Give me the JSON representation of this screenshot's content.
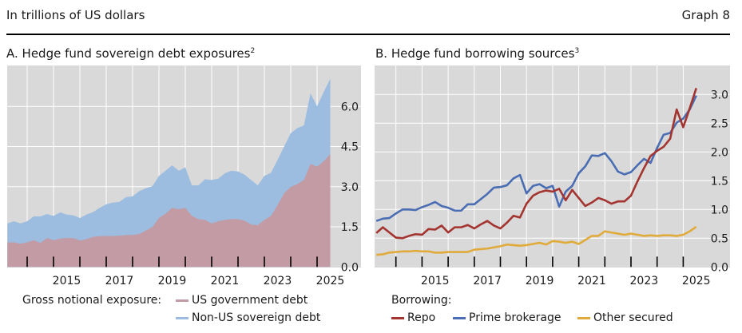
{
  "header": {
    "unit": "In trillions of US dollars",
    "graph_label": "Graph 8"
  },
  "colors": {
    "background": "#d9d9d9",
    "us_debt": "#c29ba5",
    "non_us_debt": "#9dbde0",
    "repo": "#a3342f",
    "prime_brokerage": "#4a6db3",
    "other_secured": "#e0ab3a"
  },
  "chart_data": [
    {
      "type": "area",
      "stacked": true,
      "title": "A. Hedge fund sovereign debt exposures",
      "title_note": "2",
      "xlabel": "",
      "ylabel": "",
      "x_ticks": [
        "2015",
        "2017",
        "2019",
        "2021",
        "2023",
        "2025"
      ],
      "y_ticks": [
        "0.0",
        "1.5",
        "3.0",
        "4.5",
        "6.0"
      ],
      "ylim": [
        0,
        7.5
      ],
      "xlim": [
        2013.25,
        2025.75
      ],
      "grid": true,
      "y_axis_side": "right",
      "legend_title": "Gross notional exposure:",
      "legend_placement": "bottom",
      "x": [
        2013.25,
        2013.5,
        2013.75,
        2014,
        2014.25,
        2014.5,
        2014.75,
        2015,
        2015.25,
        2015.5,
        2015.75,
        2016,
        2016.25,
        2016.5,
        2016.75,
        2017,
        2017.25,
        2017.5,
        2017.75,
        2018,
        2018.25,
        2018.5,
        2018.75,
        2019,
        2019.25,
        2019.5,
        2019.75,
        2020,
        2020.25,
        2020.5,
        2020.75,
        2021,
        2021.25,
        2021.5,
        2021.75,
        2022,
        2022.25,
        2022.5,
        2022.75,
        2023,
        2023.25,
        2023.5,
        2023.75,
        2024,
        2024.25,
        2024.5,
        2024.75,
        2025,
        2025.25,
        2025.5
      ],
      "series": [
        {
          "name": "US government debt",
          "values": [
            0.92,
            0.92,
            0.87,
            0.92,
            1.0,
            0.9,
            1.08,
            1.0,
            1.06,
            1.08,
            1.08,
            0.99,
            1.04,
            1.13,
            1.15,
            1.16,
            1.16,
            1.17,
            1.19,
            1.2,
            1.23,
            1.36,
            1.49,
            1.83,
            1.99,
            2.21,
            2.16,
            2.21,
            1.91,
            1.79,
            1.76,
            1.63,
            1.71,
            1.76,
            1.79,
            1.79,
            1.73,
            1.59,
            1.56,
            1.76,
            1.91,
            2.31,
            2.76,
            2.99,
            3.1,
            3.25,
            3.85,
            3.75,
            3.95,
            4.22
          ]
        },
        {
          "name": "Non-US sovereign debt",
          "values": [
            0.71,
            0.79,
            0.76,
            0.79,
            0.89,
            0.99,
            0.9,
            0.91,
            0.98,
            0.88,
            0.85,
            0.84,
            0.92,
            0.92,
            1.06,
            1.18,
            1.25,
            1.26,
            1.42,
            1.44,
            1.6,
            1.58,
            1.53,
            1.57,
            1.61,
            1.59,
            1.44,
            1.51,
            1.14,
            1.26,
            1.52,
            1.62,
            1.59,
            1.74,
            1.81,
            1.78,
            1.72,
            1.66,
            1.49,
            1.64,
            1.61,
            1.69,
            1.74,
            2.01,
            2.09,
            2.04,
            2.64,
            2.26,
            2.59,
            2.81
          ]
        }
      ]
    },
    {
      "type": "line",
      "title": "B. Hedge fund borrowing sources",
      "title_note": "3",
      "xlabel": "",
      "ylabel": "",
      "x_ticks": [
        "2015",
        "2017",
        "2019",
        "2021",
        "2023",
        "2025"
      ],
      "y_ticks": [
        "0.0",
        "0.5",
        "1.0",
        "1.5",
        "2.0",
        "2.5",
        "3.0"
      ],
      "ylim": [
        0,
        3.5
      ],
      "xlim": [
        2013.25,
        2025.75
      ],
      "grid": true,
      "y_axis_side": "right",
      "legend_title": "Borrowing:",
      "legend_placement": "bottom",
      "x": [
        2013.25,
        2013.5,
        2013.75,
        2014,
        2014.25,
        2014.5,
        2014.75,
        2015,
        2015.25,
        2015.5,
        2015.75,
        2016,
        2016.25,
        2016.5,
        2016.75,
        2017,
        2017.25,
        2017.5,
        2017.75,
        2018,
        2018.25,
        2018.5,
        2018.75,
        2019,
        2019.25,
        2019.5,
        2019.75,
        2020,
        2020.25,
        2020.5,
        2020.75,
        2021,
        2021.25,
        2021.5,
        2021.75,
        2022,
        2022.25,
        2022.5,
        2022.75,
        2023,
        2023.25,
        2023.5,
        2023.75,
        2024,
        2024.25,
        2024.5,
        2024.75,
        2025,
        2025.25,
        2025.5
      ],
      "series": [
        {
          "name": "Repo",
          "values": [
            0.59,
            0.69,
            0.6,
            0.51,
            0.5,
            0.54,
            0.57,
            0.56,
            0.66,
            0.65,
            0.72,
            0.6,
            0.69,
            0.69,
            0.73,
            0.67,
            0.74,
            0.8,
            0.72,
            0.67,
            0.77,
            0.89,
            0.86,
            1.1,
            1.24,
            1.3,
            1.33,
            1.31,
            1.36,
            1.16,
            1.34,
            1.2,
            1.06,
            1.12,
            1.2,
            1.16,
            1.1,
            1.14,
            1.14,
            1.24,
            1.49,
            1.72,
            1.93,
            2.02,
            2.09,
            2.23,
            2.74,
            2.43,
            2.76,
            3.11
          ]
        },
        {
          "name": "Prime brokerage",
          "values": [
            0.8,
            0.84,
            0.85,
            0.93,
            1.0,
            1.0,
            0.99,
            1.04,
            1.08,
            1.13,
            1.06,
            1.03,
            0.98,
            0.98,
            1.09,
            1.09,
            1.18,
            1.27,
            1.38,
            1.39,
            1.42,
            1.54,
            1.6,
            1.28,
            1.41,
            1.44,
            1.37,
            1.41,
            1.05,
            1.31,
            1.41,
            1.63,
            1.75,
            1.94,
            1.93,
            1.98,
            1.84,
            1.66,
            1.61,
            1.65,
            1.77,
            1.88,
            1.81,
            2.07,
            2.3,
            2.33,
            2.51,
            2.58,
            2.74,
            2.98
          ]
        },
        {
          "name": "Other secured",
          "values": [
            0.21,
            0.22,
            0.25,
            0.26,
            0.27,
            0.27,
            0.28,
            0.27,
            0.27,
            0.25,
            0.25,
            0.26,
            0.26,
            0.26,
            0.26,
            0.3,
            0.31,
            0.32,
            0.34,
            0.36,
            0.39,
            0.38,
            0.37,
            0.38,
            0.4,
            0.42,
            0.39,
            0.45,
            0.44,
            0.42,
            0.44,
            0.4,
            0.47,
            0.54,
            0.54,
            0.62,
            0.6,
            0.58,
            0.56,
            0.58,
            0.56,
            0.54,
            0.55,
            0.54,
            0.55,
            0.55,
            0.54,
            0.56,
            0.62,
            0.7
          ]
        }
      ]
    }
  ]
}
